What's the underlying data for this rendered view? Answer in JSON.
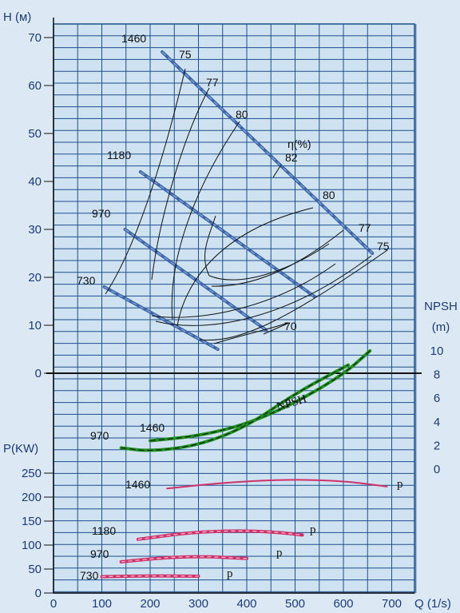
{
  "chart_data": {
    "type": "line",
    "colors": {
      "background": "#cfe2f2",
      "grid": "#1c4f8c",
      "head": "#3a5f9e",
      "npsh": "#1f8f1f",
      "power": "#d0306a",
      "efficiency": "#111111"
    },
    "x_axis": {
      "label": "Q (1/s)",
      "ticks": [
        "0",
        "100",
        "200",
        "300",
        "400",
        "500",
        "600",
        "700"
      ],
      "range": [
        0,
        750
      ]
    },
    "head_axis": {
      "label": "H (м)",
      "ticks": [
        "0",
        "10",
        "20",
        "30",
        "40",
        "50",
        "60",
        "70"
      ],
      "range": [
        0,
        72
      ]
    },
    "npsh_axis": {
      "label_top": "NPSH",
      "label_bottom": "(m)",
      "ticks": [
        "10",
        "8",
        "6",
        "4",
        "2",
        "0"
      ]
    },
    "power_axis": {
      "label": "P(KW)",
      "ticks": [
        "0",
        "50",
        "100",
        "150",
        "200",
        "250"
      ],
      "range": [
        0,
        265
      ]
    },
    "head_curves": [
      {
        "speed": "1460",
        "points": [
          [
            225,
            67
          ],
          [
            660,
            25
          ]
        ]
      },
      {
        "speed": "1180",
        "points": [
          [
            180,
            42
          ],
          [
            540,
            16
          ]
        ]
      },
      {
        "speed": "970",
        "points": [
          [
            148,
            30
          ],
          [
            440,
            9
          ]
        ]
      },
      {
        "speed": "730",
        "points": [
          [
            105,
            18
          ],
          [
            340,
            5
          ]
        ]
      }
    ],
    "efficiency_labels": {
      "eta": "η(%)",
      "l75a": "75",
      "l77a": "77",
      "l80a": "80",
      "l82": "82",
      "l80b": "80",
      "l77b": "77",
      "l75b": "75",
      "l70": "70"
    },
    "npsh_curves": [
      {
        "speed": "1460",
        "points": [
          [
            200,
            2.4
          ],
          [
            300,
            2.8
          ],
          [
            400,
            3.8
          ],
          [
            500,
            5.6
          ],
          [
            600,
            8.0
          ],
          [
            655,
            10.0
          ]
        ]
      },
      {
        "speed": "970",
        "points": [
          [
            140,
            1.8
          ],
          [
            200,
            1.5
          ],
          [
            300,
            2.0
          ],
          [
            400,
            3.6
          ],
          [
            500,
            6.4
          ],
          [
            610,
            8.8
          ]
        ]
      }
    ],
    "npsh_label": "NPSH",
    "power_curves": [
      {
        "speed": "1460",
        "label": "p",
        "points": [
          [
            235,
            218
          ],
          [
            350,
            230
          ],
          [
            480,
            237
          ],
          [
            600,
            234
          ],
          [
            690,
            222
          ]
        ]
      },
      {
        "speed": "1180",
        "label": "p",
        "points": [
          [
            175,
            112
          ],
          [
            280,
            126
          ],
          [
            370,
            130
          ],
          [
            450,
            128
          ],
          [
            515,
            121
          ]
        ]
      },
      {
        "speed": "970",
        "label": "p",
        "points": [
          [
            140,
            65
          ],
          [
            240,
            75
          ],
          [
            320,
            76
          ],
          [
            400,
            72
          ]
        ]
      },
      {
        "speed": "730",
        "label": "p",
        "points": [
          [
            100,
            34
          ],
          [
            200,
            36
          ],
          [
            300,
            35
          ]
        ]
      }
    ]
  }
}
